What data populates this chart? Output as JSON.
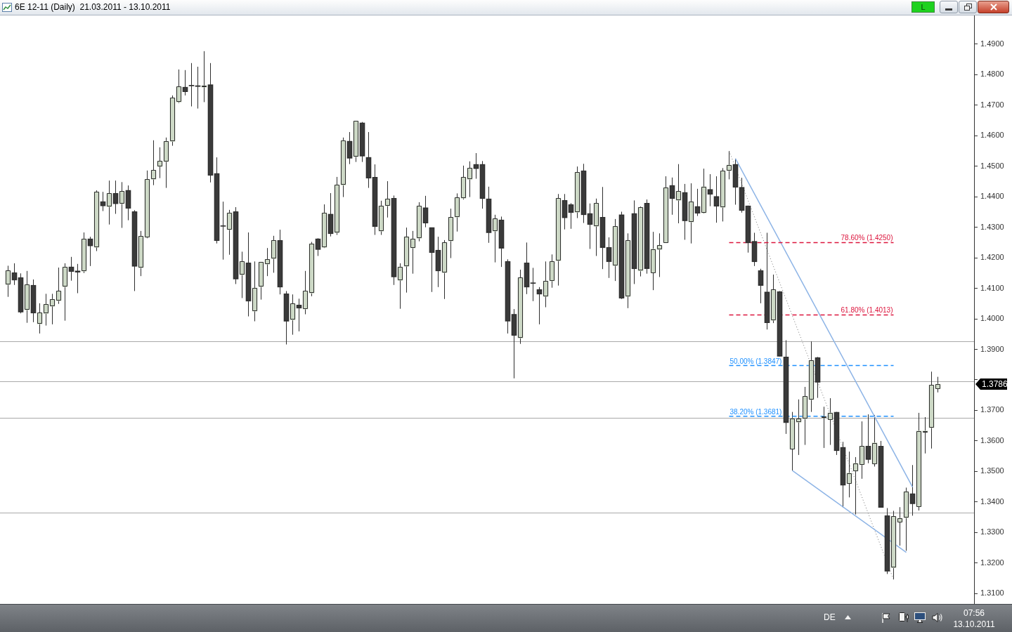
{
  "chart_data": {
    "type": "candlestick",
    "title": "6E 12-11 (Daily)  21.03.2011 - 13.10.2011",
    "categories": [
      null,
      null,
      null,
      null,
      null,
      null,
      null,
      null,
      null,
      null,
      null,
      null,
      null,
      null,
      null,
      null,
      null,
      null,
      null,
      null,
      null,
      null,
      null,
      null,
      null,
      null,
      null,
      null,
      null,
      null,
      null,
      null,
      null,
      null,
      null,
      null,
      null,
      null,
      null,
      null,
      null,
      null,
      null,
      null,
      null,
      null,
      null,
      null,
      null,
      null,
      null,
      null,
      null,
      null,
      null,
      null,
      null,
      null,
      null,
      null,
      null,
      null,
      null,
      null,
      null,
      null,
      null,
      null,
      null,
      null,
      null,
      null,
      null,
      null,
      null,
      null,
      null,
      null,
      null,
      null,
      null,
      null,
      null,
      null,
      null,
      null,
      null,
      null,
      null,
      null,
      null,
      null,
      null,
      null,
      null,
      null,
      null,
      null,
      null,
      null,
      null,
      null,
      null,
      null,
      null,
      null,
      null,
      null,
      null,
      null,
      null,
      null,
      null,
      null,
      null,
      null,
      null,
      null,
      null,
      null,
      null,
      null,
      null,
      null,
      null,
      null,
      null,
      null,
      null,
      null,
      null,
      null,
      null,
      null,
      null,
      null,
      null,
      null,
      null,
      null,
      null,
      null,
      null,
      null,
      null,
      null,
      null,
      null
    ],
    "ohlc": [
      [
        1.4112,
        1.4174,
        1.4072,
        1.4158
      ],
      [
        1.4151,
        1.4182,
        1.4111,
        1.4127
      ],
      [
        1.4135,
        1.4149,
        1.4018,
        1.4022
      ],
      [
        1.4029,
        1.4157,
        1.3987,
        1.4112
      ],
      [
        1.411,
        1.4129,
        1.3989,
        1.4019
      ],
      [
        1.3983,
        1.4051,
        1.3952,
        1.402
      ],
      [
        1.4017,
        1.4082,
        1.3978,
        1.4048
      ],
      [
        1.4041,
        1.4082,
        1.3982,
        1.4064
      ],
      [
        1.4059,
        1.4168,
        1.4049,
        1.4091
      ],
      [
        1.4105,
        1.4182,
        1.3994,
        1.417
      ],
      [
        1.417,
        1.4203,
        1.4125,
        1.4155
      ],
      [
        1.4157,
        1.418,
        1.4084,
        1.4153
      ],
      [
        1.4156,
        1.4283,
        1.415,
        1.4262
      ],
      [
        1.4262,
        1.4269,
        1.4173,
        1.4239
      ],
      [
        1.4234,
        1.4421,
        1.4222,
        1.4416
      ],
      [
        1.4384,
        1.4416,
        1.4353,
        1.437
      ],
      [
        1.4367,
        1.4453,
        1.4309,
        1.4411
      ],
      [
        1.4411,
        1.4453,
        1.4344,
        1.4377
      ],
      [
        1.4377,
        1.4448,
        1.4298,
        1.4418
      ],
      [
        1.4421,
        1.4437,
        1.4323,
        1.4362
      ],
      [
        1.4351,
        1.4356,
        1.4091,
        1.4172
      ],
      [
        1.4167,
        1.4288,
        1.414,
        1.4271
      ],
      [
        1.4267,
        1.4486,
        1.4264,
        1.4457
      ],
      [
        1.4457,
        1.4585,
        1.4438,
        1.4487
      ],
      [
        1.4499,
        1.4562,
        1.4461,
        1.4517
      ],
      [
        1.4515,
        1.4594,
        1.4429,
        1.4582
      ],
      [
        1.4581,
        1.4732,
        1.4567,
        1.4724
      ],
      [
        1.471,
        1.4817,
        1.4707,
        1.4761
      ],
      [
        1.4759,
        1.4815,
        1.4732,
        1.4744
      ],
      [
        1.4764,
        1.4838,
        1.4696,
        1.4763
      ],
      [
        1.4764,
        1.4826,
        1.4689,
        1.4761
      ],
      [
        1.4759,
        1.4877,
        1.471,
        1.4764
      ],
      [
        1.4767,
        1.4838,
        1.4447,
        1.447
      ],
      [
        1.4476,
        1.4529,
        1.4247,
        1.4256
      ],
      [
        1.4305,
        1.4384,
        1.4194,
        1.4303
      ],
      [
        1.4292,
        1.4357,
        1.421,
        1.4347
      ],
      [
        1.4351,
        1.4366,
        1.4114,
        1.413
      ],
      [
        1.4144,
        1.422,
        1.4068,
        1.4188
      ],
      [
        1.4183,
        1.4283,
        1.4008,
        1.4058
      ],
      [
        1.4025,
        1.4188,
        1.3992,
        1.4101
      ],
      [
        1.4105,
        1.4186,
        1.4063,
        1.4186
      ],
      [
        1.4179,
        1.4232,
        1.414,
        1.4195
      ],
      [
        1.4197,
        1.4272,
        1.4151,
        1.4257
      ],
      [
        1.4257,
        1.4292,
        1.408,
        1.4104
      ],
      [
        1.4082,
        1.4091,
        1.3916,
        1.3992
      ],
      [
        1.3996,
        1.408,
        1.3948,
        1.405
      ],
      [
        1.4045,
        1.4066,
        1.3959,
        1.4035
      ],
      [
        1.4032,
        1.4157,
        1.4015,
        1.4091
      ],
      [
        1.4084,
        1.4252,
        1.4074,
        1.4246
      ],
      [
        1.4262,
        1.4264,
        1.4206,
        1.4227
      ],
      [
        1.4234,
        1.4375,
        1.4232,
        1.4347
      ],
      [
        1.4343,
        1.4412,
        1.427,
        1.4279
      ],
      [
        1.4282,
        1.4465,
        1.4275,
        1.4439
      ],
      [
        1.4438,
        1.4594,
        1.4399,
        1.4584
      ],
      [
        1.4582,
        1.4612,
        1.4507,
        1.4526
      ],
      [
        1.4531,
        1.4648,
        1.4514,
        1.4648
      ],
      [
        1.4642,
        1.4645,
        1.4514,
        1.4533
      ],
      [
        1.4529,
        1.4612,
        1.4429,
        1.4461
      ],
      [
        1.4464,
        1.4506,
        1.4275,
        1.4302
      ],
      [
        1.4287,
        1.4387,
        1.4275,
        1.437
      ],
      [
        1.437,
        1.4451,
        1.4332,
        1.4393
      ],
      [
        1.4395,
        1.4404,
        1.4111,
        1.4137
      ],
      [
        1.4126,
        1.4182,
        1.4033,
        1.417
      ],
      [
        1.4172,
        1.4299,
        1.4086,
        1.4269
      ],
      [
        1.4232,
        1.4288,
        1.4148,
        1.4262
      ],
      [
        1.4264,
        1.4382,
        1.4254,
        1.437
      ],
      [
        1.4364,
        1.4403,
        1.43,
        1.4314
      ],
      [
        1.4299,
        1.4299,
        1.4088,
        1.4217
      ],
      [
        1.4225,
        1.4269,
        1.4104,
        1.4157
      ],
      [
        1.4151,
        1.4258,
        1.4065,
        1.425
      ],
      [
        1.4255,
        1.4361,
        1.4199,
        1.4333
      ],
      [
        1.4333,
        1.4411,
        1.4286,
        1.4397
      ],
      [
        1.4395,
        1.4502,
        1.4391,
        1.4464
      ],
      [
        1.4457,
        1.4516,
        1.4399,
        1.4494
      ],
      [
        1.4506,
        1.4543,
        1.4459,
        1.4492
      ],
      [
        1.4506,
        1.4517,
        1.4361,
        1.4394
      ],
      [
        1.4393,
        1.4433,
        1.4249,
        1.4282
      ],
      [
        1.4287,
        1.4341,
        1.4185,
        1.4328
      ],
      [
        1.4324,
        1.4335,
        1.417,
        1.4231
      ],
      [
        1.4188,
        1.4195,
        1.3952,
        1.3992
      ],
      [
        1.4015,
        1.4032,
        1.3805,
        1.3946
      ],
      [
        1.3937,
        1.4161,
        1.3918,
        1.4135
      ],
      [
        1.4183,
        1.425,
        1.4081,
        1.4104
      ],
      [
        1.4117,
        1.4167,
        1.4058,
        1.4116
      ],
      [
        1.4096,
        1.4104,
        1.3982,
        1.4081
      ],
      [
        1.4073,
        1.4188,
        1.4038,
        1.4124
      ],
      [
        1.4124,
        1.4211,
        1.4102,
        1.4188
      ],
      [
        1.419,
        1.4409,
        1.4109,
        1.4395
      ],
      [
        1.4388,
        1.4409,
        1.4293,
        1.4331
      ],
      [
        1.4374,
        1.4379,
        1.4295,
        1.4348
      ],
      [
        1.4349,
        1.4499,
        1.433,
        1.448
      ],
      [
        1.4485,
        1.4508,
        1.4314,
        1.4341
      ],
      [
        1.4345,
        1.4378,
        1.4229,
        1.4309
      ],
      [
        1.4303,
        1.4394,
        1.4206,
        1.4379
      ],
      [
        1.4333,
        1.4432,
        1.4163,
        1.4233
      ],
      [
        1.4234,
        1.4267,
        1.4134,
        1.4187
      ],
      [
        1.4174,
        1.4327,
        1.4124,
        1.4303
      ],
      [
        1.4341,
        1.4351,
        1.4065,
        1.4068
      ],
      [
        1.4073,
        1.428,
        1.4035,
        1.4257
      ],
      [
        1.4345,
        1.4388,
        1.4114,
        1.4164
      ],
      [
        1.4157,
        1.4368,
        1.4139,
        1.4365
      ],
      [
        1.4379,
        1.4391,
        1.4148,
        1.4164
      ],
      [
        1.4151,
        1.4285,
        1.4094,
        1.4229
      ],
      [
        1.4227,
        1.428,
        1.4137,
        1.4241
      ],
      [
        1.4249,
        1.4467,
        1.4249,
        1.443
      ],
      [
        1.4437,
        1.4463,
        1.4341,
        1.4394
      ],
      [
        1.4388,
        1.4507,
        1.4313,
        1.4418
      ],
      [
        1.4414,
        1.4442,
        1.4259,
        1.4321
      ],
      [
        1.4317,
        1.4444,
        1.4247,
        1.4384
      ],
      [
        1.4368,
        1.4426,
        1.4337,
        1.4346
      ],
      [
        1.4347,
        1.4492,
        1.4345,
        1.4433
      ],
      [
        1.4424,
        1.4474,
        1.4369,
        1.4408
      ],
      [
        1.4401,
        1.4467,
        1.4315,
        1.4369
      ],
      [
        1.4365,
        1.4494,
        1.4319,
        1.4485
      ],
      [
        1.4485,
        1.455,
        1.4457,
        1.4504
      ],
      [
        1.4506,
        1.4525,
        1.4374,
        1.4431
      ],
      [
        1.4431,
        1.4462,
        1.4348,
        1.4355
      ],
      [
        1.437,
        1.4371,
        1.4217,
        1.4249
      ],
      [
        1.4254,
        1.4282,
        1.4173,
        1.4187
      ],
      [
        1.4158,
        1.4164,
        1.4051,
        1.4109
      ],
      [
        1.4088,
        1.4282,
        1.3965,
        1.3987
      ],
      [
        1.3995,
        1.4145,
        1.3986,
        1.4096
      ],
      [
        1.4089,
        1.4091,
        1.3877,
        1.3877
      ],
      [
        1.3875,
        1.393,
        1.3623,
        1.366
      ],
      [
        1.3573,
        1.3695,
        1.3503,
        1.3674
      ],
      [
        1.3661,
        1.3736,
        1.3554,
        1.3673
      ],
      [
        1.3672,
        1.3777,
        1.3587,
        1.3746
      ],
      [
        1.3735,
        1.3926,
        1.3695,
        1.3864
      ],
      [
        1.3873,
        1.3875,
        1.3741,
        1.3792
      ],
      [
        1.3676,
        1.3712,
        1.3577,
        1.368
      ],
      [
        1.367,
        1.374,
        1.3587,
        1.3692
      ],
      [
        1.3694,
        1.3695,
        1.3554,
        1.3568
      ],
      [
        1.3579,
        1.3597,
        1.3382,
        1.3455
      ],
      [
        1.3461,
        1.3565,
        1.3415,
        1.3495
      ],
      [
        1.3501,
        1.3547,
        1.3359,
        1.3527
      ],
      [
        1.3522,
        1.3664,
        1.3476,
        1.3583
      ],
      [
        1.3583,
        1.3687,
        1.3527,
        1.3539
      ],
      [
        1.3525,
        1.3685,
        1.3516,
        1.3594
      ],
      [
        1.3583,
        1.36,
        1.3382,
        1.3382
      ],
      [
        1.3355,
        1.338,
        1.3164,
        1.3173
      ],
      [
        1.3184,
        1.3371,
        1.3146,
        1.3353
      ],
      [
        1.3334,
        1.3383,
        1.3257,
        1.3347
      ],
      [
        1.3348,
        1.3447,
        1.324,
        1.3434
      ],
      [
        1.3427,
        1.3521,
        1.3355,
        1.3394
      ],
      [
        1.3385,
        1.3692,
        1.3372,
        1.3633
      ],
      [
        1.3628,
        1.3678,
        1.3559,
        1.3633
      ],
      [
        1.3643,
        1.3827,
        1.3575,
        1.3783
      ],
      [
        1.3771,
        1.381,
        1.3759,
        1.3786
      ]
    ],
    "colors": [
      "#cdd9c6",
      "#3a3a3a",
      "#3a3a3a",
      "#cdd9c6",
      "#3a3a3a",
      "#cdd9c6",
      "#cdd9c6",
      "#cdd9c6",
      "#cdd9c6",
      "#cdd9c6",
      "#3a3a3a",
      "#3a3a3a",
      "#cdd9c6",
      "#3a3a3a",
      "#cdd9c6",
      "#3a3a3a",
      "#cdd9c6",
      "#3a3a3a",
      "#cdd9c6",
      "#3a3a3a",
      "#3a3a3a",
      "#cdd9c6",
      "#cdd9c6",
      "#cdd9c6",
      "#cdd9c6",
      "#cdd9c6",
      "#cdd9c6",
      "#cdd9c6",
      "#3a3a3a",
      "#3a3a3a",
      "#3a3a3a",
      "#cdd9c6",
      "#3a3a3a",
      "#3a3a3a",
      "#3a3a3a",
      "#cdd9c6",
      "#3a3a3a",
      "#cdd9c6",
      "#3a3a3a",
      "#cdd9c6",
      "#cdd9c6",
      "#cdd9c6",
      "#cdd9c6",
      "#3a3a3a",
      "#3a3a3a",
      "#cdd9c6",
      "#3a3a3a",
      "#cdd9c6",
      "#cdd9c6",
      "#3a3a3a",
      "#cdd9c6",
      "#3a3a3a",
      "#cdd9c6",
      "#cdd9c6",
      "#3a3a3a",
      "#cdd9c6",
      "#3a3a3a",
      "#3a3a3a",
      "#3a3a3a",
      "#cdd9c6",
      "#cdd9c6",
      "#3a3a3a",
      "#cdd9c6",
      "#cdd9c6",
      "#cdd9c6",
      "#cdd9c6",
      "#3a3a3a",
      "#3a3a3a",
      "#3a3a3a",
      "#cdd9c6",
      "#cdd9c6",
      "#cdd9c6",
      "#cdd9c6",
      "#cdd9c6",
      "#3a3a3a",
      "#3a3a3a",
      "#3a3a3a",
      "#cdd9c6",
      "#3a3a3a",
      "#3a3a3a",
      "#3a3a3a",
      "#cdd9c6",
      "#3a3a3a",
      "#3a3a3a",
      "#3a3a3a",
      "#cdd9c6",
      "#cdd9c6",
      "#cdd9c6",
      "#3a3a3a",
      "#3a3a3a",
      "#cdd9c6",
      "#3a3a3a",
      "#3a3a3a",
      "#cdd9c6",
      "#3a3a3a",
      "#3a3a3a",
      "#cdd9c6",
      "#3a3a3a",
      "#cdd9c6",
      "#3a3a3a",
      "#cdd9c6",
      "#3a3a3a",
      "#cdd9c6",
      "#cdd9c6",
      "#cdd9c6",
      "#3a3a3a",
      "#cdd9c6",
      "#3a3a3a",
      "#cdd9c6",
      "#3a3a3a",
      "#cdd9c6",
      "#3a3a3a",
      "#3a3a3a",
      "#cdd9c6",
      "#cdd9c6",
      "#3a3a3a",
      "#3a3a3a",
      "#3a3a3a",
      "#3a3a3a",
      "#3a3a3a",
      "#3a3a3a",
      "#cdd9c6",
      "#3a3a3a",
      "#3a3a3a",
      "#cdd9c6",
      "#cdd9c6",
      "#cdd9c6",
      "#cdd9c6",
      "#3a3a3a",
      "#cdd9c6",
      "#cdd9c6",
      "#3a3a3a",
      "#3a3a3a",
      "#cdd9c6",
      "#cdd9c6",
      "#cdd9c6",
      "#3a3a3a",
      "#cdd9c6",
      "#3a3a3a",
      "#3a3a3a",
      "#cdd9c6",
      "#cdd9c6",
      "#cdd9c6",
      "#3a3a3a",
      "#cdd9c6",
      "#cdd9c6",
      "#cdd9c6",
      "#cdd9c6"
    ],
    "series": [
      {
        "type": "line",
        "name": "78.60% (1.4250)",
        "color": "#dc143c",
        "line_style": "dashed",
        "values": [
          null,
          null,
          null,
          null,
          null,
          null,
          null,
          null,
          null,
          null,
          null,
          null,
          null,
          null,
          null,
          null,
          null,
          null,
          null,
          null,
          null,
          null,
          null,
          null,
          null,
          null,
          null,
          null,
          null,
          null,
          null,
          null,
          null,
          null,
          null,
          null,
          null,
          null,
          null,
          null,
          null,
          null,
          null,
          null,
          null,
          null,
          null,
          null,
          null,
          null,
          null,
          null,
          null,
          null,
          null,
          null,
          null,
          null,
          null,
          null,
          null,
          null,
          null,
          null,
          null,
          null,
          null,
          null,
          null,
          null,
          null,
          null,
          null,
          null,
          null,
          null,
          null,
          null,
          null,
          null,
          null,
          null,
          null,
          null,
          null,
          null,
          null,
          null,
          null,
          null,
          null,
          null,
          null,
          null,
          null,
          null,
          null,
          null,
          null,
          null,
          null,
          null,
          null,
          null,
          null,
          null,
          null,
          null,
          null,
          null,
          null,
          null,
          null,
          null,
          1.425,
          null,
          null,
          null,
          null,
          null,
          null,
          null,
          null,
          null,
          null,
          null,
          null,
          null,
          null,
          null,
          null,
          null,
          null,
          null,
          null,
          null,
          null,
          null,
          null,
          null,
          1.425,
          null,
          null,
          null,
          null,
          null,
          null,
          null
        ]
      },
      {
        "type": "line",
        "name": "61.80% (1.4013)",
        "color": "#dc143c",
        "line_style": "dashed",
        "values": [
          null,
          null,
          null,
          null,
          null,
          null,
          null,
          null,
          null,
          null,
          null,
          null,
          null,
          null,
          null,
          null,
          null,
          null,
          null,
          null,
          null,
          null,
          null,
          null,
          null,
          null,
          null,
          null,
          null,
          null,
          null,
          null,
          null,
          null,
          null,
          null,
          null,
          null,
          null,
          null,
          null,
          null,
          null,
          null,
          null,
          null,
          null,
          null,
          null,
          null,
          null,
          null,
          null,
          null,
          null,
          null,
          null,
          null,
          null,
          null,
          null,
          null,
          null,
          null,
          null,
          null,
          null,
          null,
          null,
          null,
          null,
          null,
          null,
          null,
          null,
          null,
          null,
          null,
          null,
          null,
          null,
          null,
          null,
          null,
          null,
          null,
          null,
          null,
          null,
          null,
          null,
          null,
          null,
          null,
          null,
          null,
          null,
          null,
          null,
          null,
          null,
          null,
          null,
          null,
          null,
          null,
          null,
          null,
          null,
          null,
          null,
          null,
          null,
          null,
          1.4013,
          null,
          null,
          null,
          null,
          null,
          null,
          null,
          null,
          null,
          null,
          null,
          null,
          null,
          null,
          null,
          null,
          null,
          null,
          null,
          null,
          null,
          null,
          null,
          null,
          null,
          1.4013,
          null,
          null,
          null,
          null,
          null,
          null,
          null
        ]
      },
      {
        "type": "line",
        "name": "50.00% (1.3847)",
        "color": "#1e90ff",
        "line_style": "dashed",
        "values": [
          null,
          null,
          null,
          null,
          null,
          null,
          null,
          null,
          null,
          null,
          null,
          null,
          null,
          null,
          null,
          null,
          null,
          null,
          null,
          null,
          null,
          null,
          null,
          null,
          null,
          null,
          null,
          null,
          null,
          null,
          null,
          null,
          null,
          null,
          null,
          null,
          null,
          null,
          null,
          null,
          null,
          null,
          null,
          null,
          null,
          null,
          null,
          null,
          null,
          null,
          null,
          null,
          null,
          null,
          null,
          null,
          null,
          null,
          null,
          null,
          null,
          null,
          null,
          null,
          null,
          null,
          null,
          null,
          null,
          null,
          null,
          null,
          null,
          null,
          null,
          null,
          null,
          null,
          null,
          null,
          null,
          null,
          null,
          null,
          null,
          null,
          null,
          null,
          null,
          null,
          null,
          null,
          null,
          null,
          null,
          null,
          null,
          null,
          null,
          null,
          null,
          null,
          null,
          null,
          null,
          null,
          null,
          null,
          null,
          null,
          null,
          null,
          null,
          null,
          1.3847,
          null,
          null,
          null,
          null,
          null,
          null,
          null,
          null,
          null,
          null,
          null,
          null,
          null,
          null,
          null,
          null,
          null,
          null,
          null,
          null,
          null,
          null,
          null,
          null,
          null,
          1.3847,
          null,
          null,
          null,
          null,
          null,
          null,
          null
        ]
      },
      {
        "type": "line",
        "name": "38.20% (1.3681)",
        "color": "#1e90ff",
        "line_style": "dashed",
        "values": [
          null,
          null,
          null,
          null,
          null,
          null,
          null,
          null,
          null,
          null,
          null,
          null,
          null,
          null,
          null,
          null,
          null,
          null,
          null,
          null,
          null,
          null,
          null,
          null,
          null,
          null,
          null,
          null,
          null,
          null,
          null,
          null,
          null,
          null,
          null,
          null,
          null,
          null,
          null,
          null,
          null,
          null,
          null,
          null,
          null,
          null,
          null,
          null,
          null,
          null,
          null,
          null,
          null,
          null,
          null,
          null,
          null,
          null,
          null,
          null,
          null,
          null,
          null,
          null,
          null,
          null,
          null,
          null,
          null,
          null,
          null,
          null,
          null,
          null,
          null,
          null,
          null,
          null,
          null,
          null,
          null,
          null,
          null,
          null,
          null,
          null,
          null,
          null,
          null,
          null,
          null,
          null,
          null,
          null,
          null,
          null,
          null,
          null,
          null,
          null,
          null,
          null,
          null,
          null,
          null,
          null,
          null,
          null,
          null,
          null,
          null,
          null,
          null,
          null,
          1.3681,
          null,
          null,
          null,
          null,
          null,
          null,
          null,
          null,
          null,
          null,
          null,
          null,
          null,
          null,
          null,
          null,
          null,
          null,
          null,
          null,
          null,
          null,
          null,
          null,
          null,
          1.3681,
          null,
          null,
          null,
          null,
          null,
          null,
          null
        ]
      },
      {
        "type": "line",
        "color": "#8db4e6",
        "values": [
          null,
          null,
          null,
          null,
          null,
          null,
          null,
          null,
          null,
          null,
          null,
          null,
          null,
          null,
          null,
          null,
          null,
          null,
          null,
          null,
          null,
          null,
          null,
          null,
          null,
          null,
          null,
          null,
          null,
          null,
          null,
          null,
          null,
          null,
          null,
          null,
          null,
          null,
          null,
          null,
          null,
          null,
          null,
          null,
          null,
          null,
          null,
          null,
          null,
          null,
          null,
          null,
          null,
          null,
          null,
          null,
          null,
          null,
          null,
          null,
          null,
          null,
          null,
          null,
          null,
          null,
          null,
          null,
          null,
          null,
          null,
          null,
          null,
          null,
          null,
          null,
          null,
          null,
          null,
          null,
          null,
          null,
          null,
          null,
          null,
          null,
          null,
          null,
          null,
          null,
          null,
          null,
          null,
          null,
          null,
          null,
          null,
          null,
          null,
          null,
          null,
          null,
          null,
          null,
          null,
          null,
          null,
          null,
          null,
          null,
          null,
          null,
          null,
          null,
          null,
          1.4525,
          null,
          null,
          null,
          null,
          null,
          null,
          null,
          null,
          null,
          null,
          null,
          null,
          null,
          null,
          null,
          null,
          null,
          null,
          null,
          null,
          null,
          null,
          null,
          null,
          null,
          null,
          null,
          1.3449,
          null,
          null,
          null,
          null
        ]
      },
      {
        "type": "line",
        "color": "#8db4e6",
        "values": [
          null,
          null,
          null,
          null,
          null,
          null,
          null,
          null,
          null,
          null,
          null,
          null,
          null,
          null,
          null,
          null,
          null,
          null,
          null,
          null,
          null,
          null,
          null,
          null,
          null,
          null,
          null,
          null,
          null,
          null,
          null,
          null,
          null,
          null,
          null,
          null,
          null,
          null,
          null,
          null,
          null,
          null,
          null,
          null,
          null,
          null,
          null,
          null,
          null,
          null,
          null,
          null,
          null,
          null,
          null,
          null,
          null,
          null,
          null,
          null,
          null,
          null,
          null,
          null,
          null,
          null,
          null,
          null,
          null,
          null,
          null,
          null,
          null,
          null,
          null,
          null,
          null,
          null,
          null,
          null,
          null,
          null,
          null,
          null,
          null,
          null,
          null,
          null,
          null,
          null,
          null,
          null,
          null,
          null,
          null,
          null,
          null,
          null,
          null,
          null,
          null,
          null,
          null,
          null,
          null,
          null,
          null,
          null,
          null,
          null,
          null,
          null,
          null,
          null,
          null,
          null,
          null,
          null,
          null,
          null,
          null,
          null,
          null,
          null,
          1.3503,
          null,
          null,
          null,
          null,
          null,
          null,
          null,
          null,
          null,
          null,
          null,
          null,
          null,
          null,
          null,
          null,
          null,
          1.3235,
          null,
          null,
          null,
          null,
          null
        ]
      },
      {
        "type": "line",
        "color": "#707070",
        "line_style": "dotted",
        "values": [
          null,
          null,
          null,
          null,
          null,
          null,
          null,
          null,
          null,
          null,
          null,
          null,
          null,
          null,
          null,
          null,
          null,
          null,
          null,
          null,
          null,
          null,
          null,
          null,
          null,
          null,
          null,
          null,
          null,
          null,
          null,
          null,
          null,
          null,
          null,
          null,
          null,
          null,
          null,
          null,
          null,
          null,
          null,
          null,
          null,
          null,
          null,
          null,
          null,
          null,
          null,
          null,
          null,
          null,
          null,
          null,
          null,
          null,
          null,
          null,
          null,
          null,
          null,
          null,
          null,
          null,
          null,
          null,
          null,
          null,
          null,
          null,
          null,
          null,
          null,
          null,
          null,
          null,
          null,
          null,
          null,
          null,
          null,
          null,
          null,
          null,
          null,
          null,
          null,
          null,
          null,
          null,
          null,
          null,
          null,
          null,
          null,
          null,
          null,
          null,
          null,
          null,
          null,
          null,
          null,
          null,
          null,
          null,
          null,
          null,
          null,
          null,
          null,
          null,
          1.455,
          null,
          null,
          null,
          null,
          null,
          null,
          null,
          null,
          null,
          null,
          null,
          null,
          null,
          null,
          null,
          null,
          null,
          null,
          null,
          null,
          null,
          null,
          null,
          null,
          null,
          1.3146,
          null,
          null,
          null,
          null,
          null,
          null,
          null
        ]
      }
    ],
    "ylim": [
      1.3066,
      1.4994
    ],
    "yticks": [
      {
        "value": 1.31,
        "label": "1.3100"
      },
      {
        "value": 1.32,
        "label": "1.3200"
      },
      {
        "value": 1.33,
        "label": "1.3300"
      },
      {
        "value": 1.34,
        "label": "1.3400"
      },
      {
        "value": 1.35,
        "label": "1.3500"
      },
      {
        "value": 1.36,
        "label": "1.3600"
      },
      {
        "value": 1.37,
        "label": "1.3700"
      },
      {
        "value": 1.38,
        "label": null
      },
      {
        "value": 1.39,
        "label": "1.3900"
      },
      {
        "value": 1.4,
        "label": "1.4000"
      },
      {
        "value": 1.41,
        "label": "1.4100"
      },
      {
        "value": 1.42,
        "label": "1.4200"
      },
      {
        "value": 1.43,
        "label": "1.4300"
      },
      {
        "value": 1.44,
        "label": "1.4400"
      },
      {
        "value": 1.45,
        "label": "1.4500"
      },
      {
        "value": 1.46,
        "label": "1.4600"
      },
      {
        "value": 1.47,
        "label": "1.4700"
      },
      {
        "value": 1.48,
        "label": "1.4800"
      },
      {
        "value": 1.49,
        "label": "1.4900"
      }
    ],
    "ref_lines": [
      {
        "axis": "y",
        "value": 1.3926,
        "color": "#a9a9a9"
      },
      {
        "axis": "y",
        "value": 1.3795,
        "color": "#a9a9a9"
      },
      {
        "axis": "y",
        "value": 1.3675,
        "color": "#a9a9a9"
      },
      {
        "axis": "y",
        "value": 1.3366,
        "color": "#a9a9a9"
      }
    ],
    "annotations": [
      "1.3786",
      "L",
      "DE",
      "07:56",
      "13.10.2011"
    ],
    "tick_labels": "y",
    "grid": false,
    "legend": false,
    "marker": "none"
  }
}
